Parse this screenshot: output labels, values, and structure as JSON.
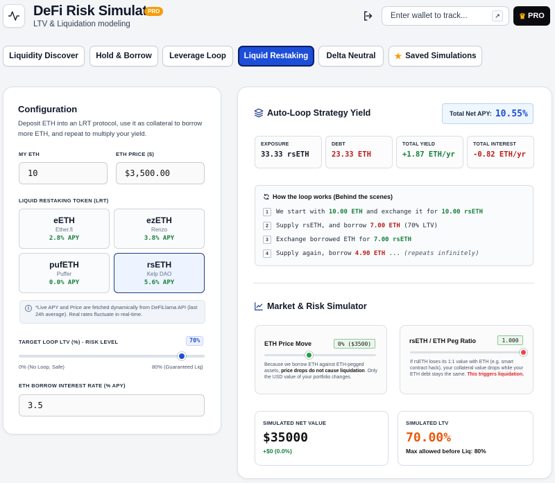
{
  "app": {
    "title": "DeFi Risk Simulator",
    "badge": "PRO",
    "subtitle": "LTV & Liquidation modeling",
    "wallet_placeholder": "Enter wallet to track...",
    "pro_button": "PRO"
  },
  "tabs": [
    {
      "label": "Liquidity Discover"
    },
    {
      "label": "Hold & Borrow"
    },
    {
      "label": "Leverage Loop"
    },
    {
      "label": "Liquid Restaking",
      "active": true
    },
    {
      "label": "Delta Neutral"
    },
    {
      "label": "Saved Simulations",
      "icon": "star-icon"
    }
  ],
  "config": {
    "title": "Configuration",
    "description": "Deposit ETH into an LRT protocol, use it as collateral to borrow more ETH, and repeat to multiply your yield.",
    "my_eth_label": "MY ETH",
    "my_eth_value": "10",
    "eth_price_label": "ETH PRICE ($)",
    "eth_price_value": "$3,500.00",
    "lrt_label": "LIQUID RESTAKING TOKEN (LRT)",
    "tokens": [
      {
        "symbol": "eETH",
        "provider": "Ether.fi",
        "apy": "2.8% APY"
      },
      {
        "symbol": "ezETH",
        "provider": "Renzo",
        "apy": "3.8% APY"
      },
      {
        "symbol": "pufETH",
        "provider": "Puffer",
        "apy": "0.0% APY"
      },
      {
        "symbol": "rsETH",
        "provider": "Kelp DAO",
        "apy": "5.6% APY",
        "selected": true
      }
    ],
    "info_note": "*Live APY and Price are fetched dynamically from DeFiLlama API (last 24h average). Real rates fluctuate in real-time.",
    "ltv_label": "TARGET LOOP LTV (%) - RISK LEVEL",
    "ltv_value": "70%",
    "ltv_fraction": 0.875,
    "ltv_min_label": "0% (No Loop, Safe)",
    "ltv_max_label": "80% (Guaranteed Liq)",
    "borrow_rate_label": "ETH BORROW INTEREST RATE (% APY)",
    "borrow_rate_value": "3.5"
  },
  "strategy": {
    "title": "Auto-Loop Strategy Yield",
    "net_apy_label": "Total Net APY:",
    "net_apy_value": "10.55%",
    "stats": [
      {
        "label": "EXPOSURE",
        "value": "33.33 rsETH",
        "color": "#111827"
      },
      {
        "label": "DEBT",
        "value": "23.33 ETH",
        "color": "#b91c1c"
      },
      {
        "label": "TOTAL YIELD",
        "value": "+1.87 ETH/yr",
        "color": "#15803d"
      },
      {
        "label": "TOTAL INTEREST",
        "value": "-0.82 ETH/yr",
        "color": "#b91c1c"
      }
    ],
    "loop_title": "How the loop works (Behind the scenes)",
    "steps": [
      {
        "n": "1",
        "a": "We start with ",
        "a2": "10.00 ETH",
        "b": " and exchange it for ",
        "c": "10.00 rsETH"
      },
      {
        "n": "2",
        "a": "Supply rsETH, and borrow ",
        "b_red": "7.00 ETH",
        "c": " (70% LTV)"
      },
      {
        "n": "3",
        "a": "Exchange borrowed ETH for ",
        "c": "7.00 rsETH"
      },
      {
        "n": "4",
        "a": "Supply again, borrow ",
        "b_red": "4.90 ETH",
        "c": " ... ",
        "it": "(repeats infinitely)"
      }
    ]
  },
  "market": {
    "title": "Market & Risk Simulator",
    "price_move_label": "ETH Price Move",
    "price_move_value": "0% ($3500)",
    "price_move_fraction": 0.4,
    "price_note_1": "Because we borrow ETH against ETH-pegged assets, ",
    "price_note_bold": "price drops do not cause liquidation",
    "price_note_2": ". Only the USD value of your portfolio changes.",
    "peg_label": "rsETH / ETH Peg Ratio",
    "peg_value": "1.000",
    "peg_fraction": 1.0,
    "peg_note_1": "If rsETH loses its 1:1 value with ETH (e.g. smart contract hack), your collateral value drops while your ETH debt stays the same. ",
    "peg_note_warn": "This triggers liquidation.",
    "net_value_label": "SIMULATED NET VALUE",
    "net_value": "$35000",
    "net_change": "+$0 (0.0%)",
    "ltv_label": "SIMULATED LTV",
    "ltv_value": "70.00%",
    "ltv_note": "Max allowed before Liq: 80%"
  },
  "colors": {
    "accent": "#1d4ed8",
    "green": "#15803d",
    "red": "#b91c1c",
    "orange": "#ea580c",
    "slider_green": "#16a34a",
    "slider_red": "#ef4444"
  }
}
